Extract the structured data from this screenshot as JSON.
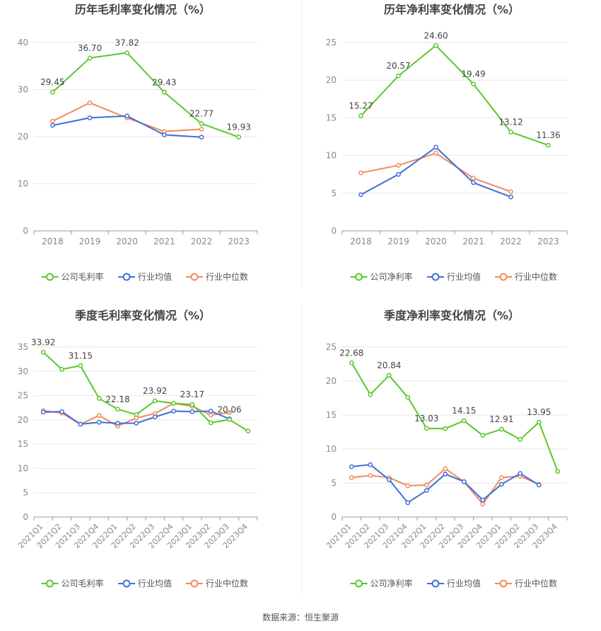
{
  "source_text": "数据来源：恒生聚源",
  "colors": {
    "company": "#5cc62e",
    "avg": "#3f6fd8",
    "median": "#f08a5d",
    "grid": "#e6e6e6",
    "axis": "#999999",
    "tick": "#888888",
    "label": "#444444",
    "title": "#444444"
  },
  "chart_data": [
    {
      "type": "line",
      "title": "历年毛利率变化情况（%）",
      "categories": [
        "2018",
        "2019",
        "2020",
        "2021",
        "2022",
        "2023"
      ],
      "ylim": [
        0,
        40
      ],
      "yticks": [
        0,
        10,
        20,
        30,
        40
      ],
      "grid": true,
      "legend_position": "bottom",
      "series": [
        {
          "name": "公司毛利率",
          "color_key": "company",
          "values": [
            29.45,
            36.7,
            37.82,
            29.43,
            22.77,
            19.93
          ],
          "labels": [
            "29.45",
            "36.70",
            "37.82",
            "29.43",
            "22.77",
            "19.93"
          ]
        },
        {
          "name": "行业均值",
          "color_key": "avg",
          "values": [
            22.4,
            24.0,
            24.4,
            20.4,
            19.9,
            null
          ]
        },
        {
          "name": "行业中位数",
          "color_key": "median",
          "values": [
            23.3,
            27.2,
            24.0,
            21.1,
            21.6,
            null
          ]
        }
      ]
    },
    {
      "type": "line",
      "title": "历年净利率变化情况（%）",
      "categories": [
        "2018",
        "2019",
        "2020",
        "2021",
        "2022",
        "2023"
      ],
      "ylim": [
        0,
        25
      ],
      "yticks": [
        0,
        5,
        10,
        15,
        20,
        25
      ],
      "grid": true,
      "legend_position": "bottom",
      "series": [
        {
          "name": "公司净利率",
          "color_key": "company",
          "values": [
            15.27,
            20.57,
            24.6,
            19.49,
            13.12,
            11.36
          ],
          "labels": [
            "15.27",
            "20.57",
            "24.60",
            "19.49",
            "13.12",
            "11.36"
          ]
        },
        {
          "name": "行业均值",
          "color_key": "avg",
          "values": [
            4.8,
            7.5,
            11.1,
            6.4,
            4.5,
            null
          ]
        },
        {
          "name": "行业中位数",
          "color_key": "median",
          "values": [
            7.7,
            8.7,
            10.3,
            7.0,
            5.2,
            null
          ]
        }
      ]
    },
    {
      "type": "line",
      "title": "季度毛利率变化情况（%）",
      "categories": [
        "2021Q1",
        "2021Q2",
        "2021Q3",
        "2021Q4",
        "2022Q1",
        "2022Q2",
        "2022Q3",
        "2022Q4",
        "2023Q1",
        "2023Q2",
        "2023Q3",
        "2023Q4"
      ],
      "ylim": [
        0,
        35
      ],
      "yticks": [
        0,
        5,
        10,
        15,
        20,
        25,
        30,
        35
      ],
      "grid": true,
      "legend_position": "bottom",
      "series": [
        {
          "name": "公司毛利率",
          "color_key": "company",
          "values": [
            33.92,
            30.4,
            31.15,
            24.4,
            22.18,
            21.1,
            23.92,
            23.4,
            23.17,
            19.4,
            20.06,
            17.7
          ],
          "labels": [
            "33.92",
            "",
            "31.15",
            "",
            "22.18",
            "",
            "23.92",
            "",
            "23.17",
            "",
            "20.06",
            ""
          ]
        },
        {
          "name": "行业均值",
          "color_key": "avg",
          "values": [
            21.6,
            21.7,
            19.1,
            19.5,
            19.3,
            19.3,
            20.6,
            21.8,
            21.7,
            21.8,
            20.2,
            null
          ]
        },
        {
          "name": "行业中位数",
          "color_key": "median",
          "values": [
            21.9,
            21.4,
            19.1,
            20.9,
            18.7,
            20.4,
            21.3,
            23.4,
            22.8,
            21.0,
            21.5,
            null
          ]
        }
      ]
    },
    {
      "type": "line",
      "title": "季度净利率变化情况（%）",
      "categories": [
        "2021Q1",
        "2021Q2",
        "2021Q3",
        "2021Q4",
        "2022Q1",
        "2022Q2",
        "2022Q3",
        "2022Q4",
        "2023Q1",
        "2023Q2",
        "2023Q3",
        "2023Q4"
      ],
      "ylim": [
        0,
        25
      ],
      "yticks": [
        0,
        5,
        10,
        15,
        20,
        25
      ],
      "grid": true,
      "legend_position": "bottom",
      "series": [
        {
          "name": "公司净利率",
          "color_key": "company",
          "values": [
            22.68,
            18.0,
            20.84,
            17.6,
            13.03,
            13.0,
            14.15,
            12.0,
            12.91,
            11.4,
            13.95,
            6.7
          ],
          "labels": [
            "22.68",
            "",
            "20.84",
            "",
            "13.03",
            "",
            "14.15",
            "",
            "12.91",
            "",
            "13.95",
            ""
          ]
        },
        {
          "name": "行业均值",
          "color_key": "avg",
          "values": [
            7.4,
            7.7,
            5.5,
            2.1,
            3.9,
            6.3,
            5.2,
            2.5,
            4.8,
            6.4,
            4.7,
            null
          ]
        },
        {
          "name": "行业中位数",
          "color_key": "median",
          "values": [
            5.8,
            6.1,
            5.8,
            4.6,
            4.7,
            7.1,
            5.2,
            1.9,
            5.8,
            6.0,
            4.8,
            null
          ]
        }
      ]
    }
  ]
}
